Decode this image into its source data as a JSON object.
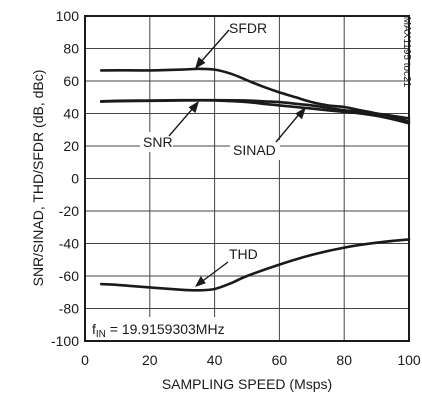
{
  "chart_data": {
    "type": "line",
    "xlabel": "SAMPLING SPEED (Msps)",
    "ylabel": "SNR/SINAD, THD/SFDR (dB, dBc)",
    "xlim": [
      0,
      100
    ],
    "ylim": [
      -100,
      100
    ],
    "x_ticks": [
      0,
      20,
      40,
      60,
      80,
      100
    ],
    "y_ticks": [
      100,
      80,
      60,
      40,
      20,
      0,
      -20,
      -40,
      -60,
      -80,
      -100
    ],
    "grid": true,
    "figure_code": "MAX1195 toc21",
    "condition": {
      "prefix": "f",
      "subscript": "IN",
      "text": " = 19.9159303MHz"
    },
    "series": [
      {
        "name": "SFDR",
        "x": [
          5,
          10,
          20,
          30,
          35,
          40,
          45,
          50,
          55,
          60,
          65,
          70,
          75,
          80,
          85,
          90,
          95,
          100
        ],
        "y": [
          66.5,
          66.6,
          66.5,
          67,
          67.5,
          67,
          64.5,
          60.5,
          56.5,
          53,
          50,
          47,
          45,
          44,
          42,
          40,
          38,
          35
        ]
      },
      {
        "name": "SNR",
        "x": [
          5,
          10,
          20,
          30,
          40,
          50,
          55,
          60,
          65,
          70,
          75,
          80,
          85,
          90,
          95,
          100
        ],
        "y": [
          47.5,
          47.8,
          48,
          48.2,
          48.2,
          48,
          47.5,
          47,
          46,
          45,
          43.5,
          42,
          41,
          40,
          38.5,
          37
        ]
      },
      {
        "name": "SINAD",
        "x": [
          5,
          10,
          20,
          30,
          40,
          50,
          55,
          60,
          65,
          70,
          75,
          80,
          85,
          90,
          95,
          100
        ],
        "y": [
          47.3,
          47.6,
          47.8,
          48,
          48,
          47,
          46,
          45,
          44,
          43,
          42,
          41,
          40,
          38.5,
          36.5,
          34
        ]
      },
      {
        "name": "THD",
        "x": [
          5,
          10,
          20,
          30,
          35,
          40,
          45,
          50,
          60,
          70,
          80,
          90,
          100
        ],
        "y": [
          -65,
          -65.5,
          -67,
          -68.5,
          -68.8,
          -68,
          -64.5,
          -60,
          -53,
          -47,
          -42.5,
          -39.5,
          -37.5
        ]
      }
    ],
    "annotations": [
      {
        "text": "SFDR",
        "series": "SFDR"
      },
      {
        "text": "SNR",
        "series": "SNR"
      },
      {
        "text": "SINAD",
        "series": "SINAD"
      },
      {
        "text": "THD",
        "series": "THD"
      }
    ]
  }
}
